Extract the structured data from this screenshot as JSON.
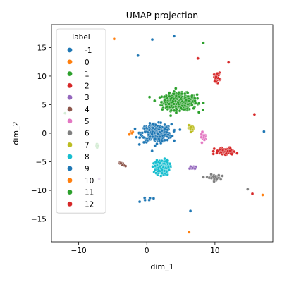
{
  "chart_data": {
    "type": "scatter",
    "title": "UMAP projection",
    "xlabel": "dim_1",
    "ylabel": "dim_2",
    "xlim": [
      -14,
      18.5
    ],
    "ylim": [
      -19,
      19
    ],
    "xticks": [
      {
        "value": -10,
        "label": "−10"
      },
      {
        "value": 0,
        "label": "0"
      },
      {
        "value": 10,
        "label": "10"
      }
    ],
    "yticks": [
      {
        "value": -15,
        "label": "−15"
      },
      {
        "value": -10,
        "label": "−10"
      },
      {
        "value": -5,
        "label": "−5"
      },
      {
        "value": 0,
        "label": "0"
      },
      {
        "value": 5,
        "label": "5"
      },
      {
        "value": 10,
        "label": "10"
      },
      {
        "value": 15,
        "label": "15"
      }
    ],
    "grid": false,
    "legend": {
      "title": "label",
      "position": "upper-left",
      "entries": [
        {
          "name": "-1",
          "color": "#1f77b4"
        },
        {
          "name": "0",
          "color": "#ff7f0e"
        },
        {
          "name": "1",
          "color": "#2ca02c"
        },
        {
          "name": "2",
          "color": "#d62728"
        },
        {
          "name": "3",
          "color": "#9467bd"
        },
        {
          "name": "4",
          "color": "#8c564b"
        },
        {
          "name": "5",
          "color": "#e377c2"
        },
        {
          "name": "6",
          "color": "#7f7f7f"
        },
        {
          "name": "7",
          "color": "#bcbd22"
        },
        {
          "name": "8",
          "color": "#17becf"
        },
        {
          "name": "9",
          "color": "#1f77b4"
        },
        {
          "name": "10",
          "color": "#ff7f0e"
        },
        {
          "name": "11",
          "color": "#2ca02c"
        },
        {
          "name": "12",
          "color": "#d62728"
        }
      ]
    },
    "clusters": [
      {
        "label": "1",
        "center": [
          4.8,
          5.5
        ],
        "spread": [
          2.3,
          1.3
        ],
        "approx_points": 380
      },
      {
        "label": "-1",
        "center": [
          1.4,
          0.0
        ],
        "spread": [
          2.0,
          1.4
        ],
        "approx_points": 300
      },
      {
        "label": "8",
        "center": [
          2.3,
          -6.0
        ],
        "spread": [
          0.9,
          1.2
        ],
        "approx_points": 170
      },
      {
        "label": "2",
        "center": [
          11.5,
          -3.2
        ],
        "spread": [
          1.4,
          0.6
        ],
        "approx_points": 70
      },
      {
        "label": "12",
        "center": [
          10.3,
          9.8
        ],
        "spread": [
          0.4,
          0.7
        ],
        "approx_points": 35
      },
      {
        "label": "6",
        "center": [
          9.8,
          -7.8
        ],
        "spread": [
          0.9,
          0.5
        ],
        "approx_points": 40
      },
      {
        "label": "7",
        "center": [
          6.6,
          0.9
        ],
        "spread": [
          0.5,
          0.4
        ],
        "approx_points": 20
      },
      {
        "label": "5",
        "center": [
          8.2,
          -0.5
        ],
        "spread": [
          0.4,
          0.8
        ],
        "approx_points": 15
      },
      {
        "label": "3",
        "center": [
          6.9,
          -6.1
        ],
        "spread": [
          0.5,
          0.3
        ],
        "approx_points": 10
      },
      {
        "label": "11",
        "center": [
          -7.2,
          -2.2
        ],
        "spread": [
          0.2,
          0.4
        ],
        "approx_points": 10
      },
      {
        "label": "0",
        "center": [
          -2.2,
          0.1
        ],
        "spread": [
          0.5,
          0.2
        ],
        "approx_points": 8
      },
      {
        "label": "4",
        "center": [
          -3.5,
          -5.5
        ],
        "spread": [
          0.6,
          0.3
        ],
        "approx_points": 8
      },
      {
        "label": "9",
        "center": [
          0.5,
          -11.5
        ],
        "spread": [
          1.0,
          0.5
        ],
        "approx_points": 6
      }
    ],
    "notable_points": [
      {
        "label": "0",
        "x": -4.8,
        "y": 16.5
      },
      {
        "label": "0",
        "x": 6.2,
        "y": -17.3
      },
      {
        "label": "-1",
        "x": 4.0,
        "y": 17.0
      },
      {
        "label": "-1",
        "x": 0.8,
        "y": 16.4
      },
      {
        "label": "-1",
        "x": -1.3,
        "y": 13.6
      },
      {
        "label": "-1",
        "x": 6.4,
        "y": -13.6
      },
      {
        "label": "-1",
        "x": 17.2,
        "y": 0.3
      },
      {
        "label": "11",
        "x": 8.3,
        "y": 15.8
      },
      {
        "label": "2",
        "x": 7.5,
        "y": 13.1
      },
      {
        "label": "0",
        "x": 17.0,
        "y": -10.8
      },
      {
        "label": "2",
        "x": 15.5,
        "y": -10.6
      },
      {
        "label": "2",
        "x": 12.0,
        "y": 12.4
      },
      {
        "label": "2",
        "x": 15.8,
        "y": 3.3
      },
      {
        "label": "6",
        "x": 14.8,
        "y": -9.8
      },
      {
        "label": "3",
        "x": -7.0,
        "y": -8.0
      },
      {
        "label": "11",
        "x": -12.0,
        "y": 3.5
      }
    ]
  }
}
